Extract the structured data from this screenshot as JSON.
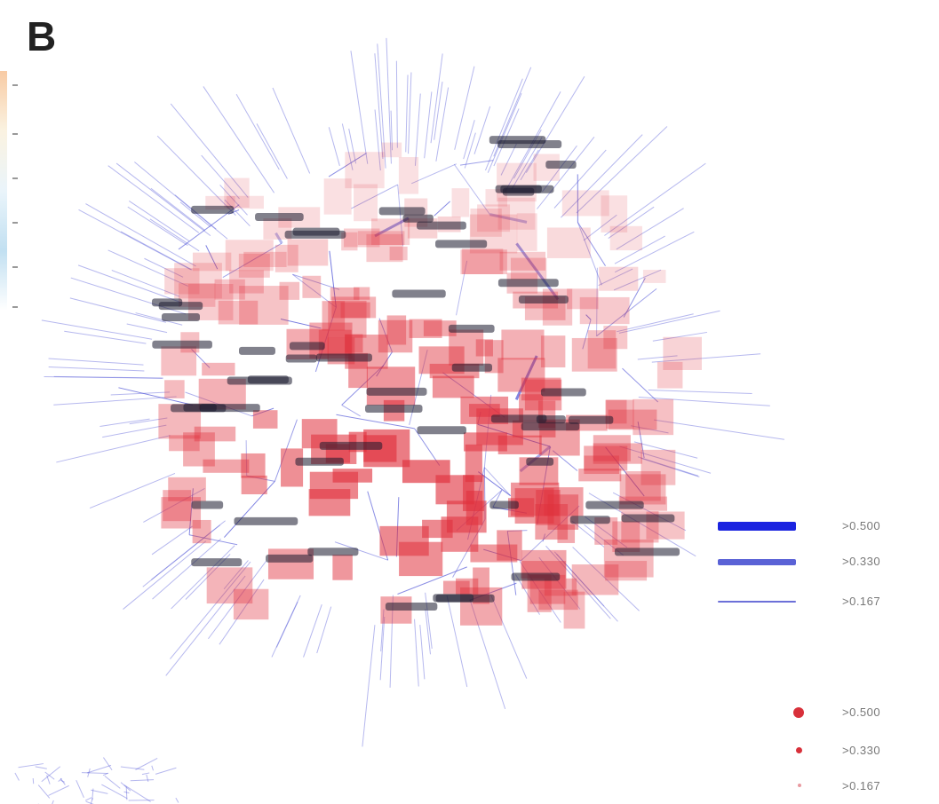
{
  "figure": {
    "panel_label": "B"
  },
  "legend": {
    "edges": [
      {
        "label": ">0.500",
        "weight": "thick"
      },
      {
        "label": ">0.330",
        "weight": "medium"
      },
      {
        "label": ">0.167",
        "weight": "thin"
      }
    ],
    "nodes": [
      {
        "label": ">0.500",
        "size": "large"
      },
      {
        "label": ">0.330",
        "size": "medium"
      },
      {
        "label": ">0.167",
        "size": "small"
      }
    ]
  },
  "colors": {
    "edge": "#4a4fd6",
    "node": "#e0303c",
    "background": "#ffffff"
  }
}
